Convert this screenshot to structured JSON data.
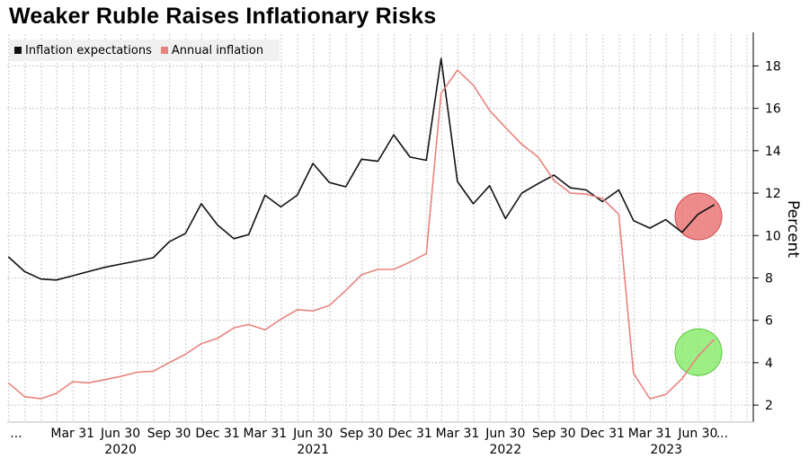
{
  "title": "Weaker Ruble Raises Inflationary Risks",
  "colors": {
    "expectations": "#111111",
    "inflation": "#e8837c",
    "red_marker": "#e86565",
    "green_marker": "#7ee85e",
    "grid": "#c8c8c8"
  },
  "legend": {
    "expectations_label": "Inflation expectations",
    "inflation_label": "Annual inflation"
  },
  "chart_data": {
    "type": "line",
    "title": "Weaker Ruble Raises Inflationary Risks",
    "ylabel": "Percent",
    "ylim": [
      1.2,
      19.5
    ],
    "y_ticks": [
      2,
      4,
      6,
      8,
      10,
      12,
      14,
      16,
      18
    ],
    "y_axis_side": "right",
    "grid": true,
    "legend_position": "top-left",
    "x_ticks": [
      {
        "label": "...",
        "date": "2019-12-15"
      },
      {
        "label": "Mar 31",
        "date": "2020-03-31"
      },
      {
        "label": "Jun 30",
        "date": "2020-06-30"
      },
      {
        "label": "Sep 30",
        "date": "2020-09-30"
      },
      {
        "label": "Dec 31",
        "date": "2020-12-31"
      },
      {
        "label": "Mar 31",
        "date": "2021-03-31"
      },
      {
        "label": "Jun 30",
        "date": "2021-06-30"
      },
      {
        "label": "Sep 30",
        "date": "2021-09-30"
      },
      {
        "label": "Dec 31",
        "date": "2021-12-31"
      },
      {
        "label": "Mar 31",
        "date": "2022-03-31"
      },
      {
        "label": "Jun 30",
        "date": "2022-06-30"
      },
      {
        "label": "Sep 30",
        "date": "2022-09-30"
      },
      {
        "label": "Dec 31",
        "date": "2022-12-31"
      },
      {
        "label": "Mar 31",
        "date": "2023-03-31"
      },
      {
        "label": "Jun 30",
        "date": "2023-06-30"
      },
      {
        "label": "...",
        "date": "2023-08-15"
      }
    ],
    "year_labels": [
      {
        "label": "2020",
        "date": "2020-06-30"
      },
      {
        "label": "2021",
        "date": "2021-06-30"
      },
      {
        "label": "2022",
        "date": "2022-06-30"
      },
      {
        "label": "2023",
        "date": "2023-05-01"
      }
    ],
    "x_range": [
      "2019-11-28",
      "2023-10-13"
    ],
    "series": [
      {
        "name": "Inflation expectations",
        "points": [
          [
            "2019-11-30",
            9.0
          ],
          [
            "2019-12-31",
            8.3
          ],
          [
            "2020-01-31",
            7.95
          ],
          [
            "2020-02-29",
            7.9
          ],
          [
            "2020-03-31",
            8.1
          ],
          [
            "2020-04-30",
            8.3
          ],
          [
            "2020-05-31",
            8.5
          ],
          [
            "2020-06-30",
            8.65
          ],
          [
            "2020-07-31",
            8.8
          ],
          [
            "2020-08-31",
            8.95
          ],
          [
            "2020-09-30",
            9.7
          ],
          [
            "2020-10-31",
            10.1
          ],
          [
            "2020-11-30",
            11.5
          ],
          [
            "2020-12-31",
            10.5
          ],
          [
            "2021-01-31",
            9.85
          ],
          [
            "2021-02-28",
            10.05
          ],
          [
            "2021-03-31",
            11.9
          ],
          [
            "2021-04-30",
            11.35
          ],
          [
            "2021-05-31",
            11.9
          ],
          [
            "2021-06-30",
            13.4
          ],
          [
            "2021-07-31",
            12.5
          ],
          [
            "2021-08-31",
            12.3
          ],
          [
            "2021-09-30",
            13.6
          ],
          [
            "2021-10-31",
            13.5
          ],
          [
            "2021-11-30",
            14.75
          ],
          [
            "2021-12-31",
            13.7
          ],
          [
            "2022-01-31",
            13.55
          ],
          [
            "2022-02-28",
            18.35
          ],
          [
            "2022-03-31",
            12.55
          ],
          [
            "2022-04-30",
            11.5
          ],
          [
            "2022-05-31",
            12.35
          ],
          [
            "2022-06-30",
            10.8
          ],
          [
            "2022-07-31",
            12.0
          ],
          [
            "2022-08-31",
            12.45
          ],
          [
            "2022-09-30",
            12.85
          ],
          [
            "2022-10-31",
            12.25
          ],
          [
            "2022-11-30",
            12.15
          ],
          [
            "2022-12-31",
            11.6
          ],
          [
            "2023-01-31",
            12.15
          ],
          [
            "2023-02-28",
            10.7
          ],
          [
            "2023-03-31",
            10.35
          ],
          [
            "2023-04-30",
            10.75
          ],
          [
            "2023-05-31",
            10.15
          ],
          [
            "2023-06-30",
            11.0
          ],
          [
            "2023-07-31",
            11.45
          ]
        ]
      },
      {
        "name": "Annual inflation",
        "points": [
          [
            "2019-11-30",
            3.05
          ],
          [
            "2019-12-31",
            2.4
          ],
          [
            "2020-01-31",
            2.3
          ],
          [
            "2020-02-29",
            2.55
          ],
          [
            "2020-03-31",
            3.1
          ],
          [
            "2020-04-30",
            3.05
          ],
          [
            "2020-05-31",
            3.2
          ],
          [
            "2020-06-30",
            3.35
          ],
          [
            "2020-07-31",
            3.55
          ],
          [
            "2020-08-31",
            3.6
          ],
          [
            "2020-09-30",
            4.0
          ],
          [
            "2020-10-31",
            4.4
          ],
          [
            "2020-11-30",
            4.9
          ],
          [
            "2020-12-31",
            5.15
          ],
          [
            "2021-01-31",
            5.65
          ],
          [
            "2021-02-28",
            5.8
          ],
          [
            "2021-03-31",
            5.55
          ],
          [
            "2021-04-30",
            6.05
          ],
          [
            "2021-05-31",
            6.5
          ],
          [
            "2021-06-30",
            6.45
          ],
          [
            "2021-07-31",
            6.7
          ],
          [
            "2021-08-31",
            7.4
          ],
          [
            "2021-09-30",
            8.15
          ],
          [
            "2021-10-31",
            8.4
          ],
          [
            "2021-11-30",
            8.4
          ],
          [
            "2021-12-31",
            8.75
          ],
          [
            "2022-01-31",
            9.15
          ],
          [
            "2022-02-28",
            16.7
          ],
          [
            "2022-03-31",
            17.8
          ],
          [
            "2022-04-30",
            17.1
          ],
          [
            "2022-05-31",
            15.9
          ],
          [
            "2022-06-30",
            15.1
          ],
          [
            "2022-07-31",
            14.3
          ],
          [
            "2022-08-31",
            13.7
          ],
          [
            "2022-09-30",
            12.6
          ],
          [
            "2022-10-31",
            12.0
          ],
          [
            "2022-11-30",
            11.95
          ],
          [
            "2022-12-31",
            11.75
          ],
          [
            "2023-01-31",
            11.0
          ],
          [
            "2023-02-28",
            3.5
          ],
          [
            "2023-03-31",
            2.3
          ],
          [
            "2023-04-30",
            2.5
          ],
          [
            "2023-05-31",
            3.25
          ],
          [
            "2023-06-30",
            4.3
          ],
          [
            "2023-07-31",
            5.1
          ]
        ]
      }
    ],
    "highlights": [
      {
        "series": "Inflation expectations",
        "date": "2023-07-01",
        "value": 10.9,
        "color": "red"
      },
      {
        "series": "Annual inflation",
        "date": "2023-07-01",
        "value": 4.5,
        "color": "green"
      }
    ]
  }
}
